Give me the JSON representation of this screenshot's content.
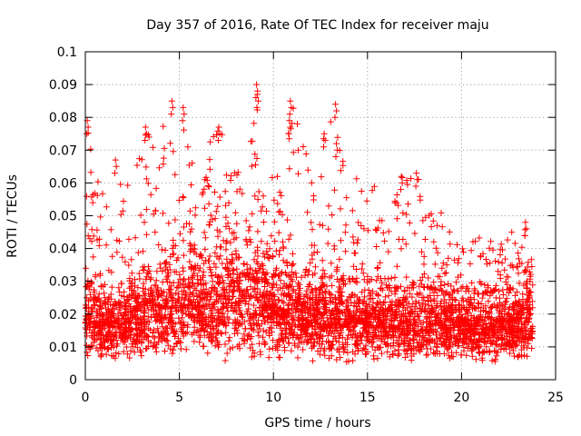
{
  "chart_data": {
    "type": "scatter",
    "title": "Day 357 of 2016, Rate Of TEC Index for receiver maju",
    "xlabel": "GPS time / hours",
    "ylabel": "ROTI / TECUs",
    "xlim": [
      0,
      25
    ],
    "ylim": [
      0,
      0.1
    ],
    "x_ticks": [
      0,
      5,
      10,
      15,
      20,
      25
    ],
    "x_tick_labels": [
      "0",
      "5",
      "10",
      "15",
      "20",
      "25"
    ],
    "y_ticks": [
      0,
      0.01,
      0.02,
      0.03,
      0.04,
      0.05,
      0.06,
      0.07,
      0.08,
      0.09,
      0.1
    ],
    "y_tick_labels": [
      "0",
      "0.01",
      "0.02",
      "0.03",
      "0.04",
      "0.05",
      "0.06",
      "0.07",
      "0.08",
      "0.09",
      "0.1"
    ],
    "grid": true,
    "marker": "plus",
    "color": "#ff0000",
    "data_extent_hours": [
      0,
      23.8
    ],
    "envelope": {
      "x": [
        0,
        1,
        2,
        3,
        4,
        5,
        6,
        7,
        8,
        9,
        10,
        11,
        12,
        13,
        14,
        15,
        16,
        17,
        18,
        19,
        20,
        21,
        22,
        23,
        23.8
      ],
      "low": [
        0.006,
        0.006,
        0.006,
        0.006,
        0.006,
        0.006,
        0.005,
        0.005,
        0.005,
        0.005,
        0.005,
        0.005,
        0.005,
        0.005,
        0.005,
        0.005,
        0.005,
        0.005,
        0.005,
        0.005,
        0.005,
        0.005,
        0.005,
        0.005,
        0.005
      ],
      "base_high": [
        0.03,
        0.028,
        0.028,
        0.031,
        0.034,
        0.04,
        0.038,
        0.04,
        0.042,
        0.04,
        0.036,
        0.034,
        0.032,
        0.031,
        0.03,
        0.029,
        0.028,
        0.028,
        0.028,
        0.027,
        0.027,
        0.026,
        0.027,
        0.028,
        0.03
      ],
      "spike_high": [
        0.08,
        0.062,
        0.062,
        0.074,
        0.078,
        0.084,
        0.064,
        0.078,
        0.066,
        0.09,
        0.06,
        0.085,
        0.064,
        0.085,
        0.064,
        0.065,
        0.05,
        0.064,
        0.064,
        0.05,
        0.04,
        0.045,
        0.043,
        0.05,
        0.043
      ]
    },
    "peaks": [
      {
        "x": 0.1,
        "y": 0.079
      },
      {
        "x": 1.6,
        "y": 0.067
      },
      {
        "x": 3.2,
        "y": 0.077
      },
      {
        "x": 4.6,
        "y": 0.085
      },
      {
        "x": 5.2,
        "y": 0.083
      },
      {
        "x": 7.1,
        "y": 0.077
      },
      {
        "x": 9.1,
        "y": 0.09
      },
      {
        "x": 9.15,
        "y": 0.087
      },
      {
        "x": 10.9,
        "y": 0.085
      },
      {
        "x": 10.85,
        "y": 0.079
      },
      {
        "x": 12.7,
        "y": 0.075
      },
      {
        "x": 13.3,
        "y": 0.084
      },
      {
        "x": 13.35,
        "y": 0.072
      },
      {
        "x": 16.8,
        "y": 0.062
      },
      {
        "x": 17.6,
        "y": 0.063
      },
      {
        "x": 23.4,
        "y": 0.048
      }
    ]
  }
}
